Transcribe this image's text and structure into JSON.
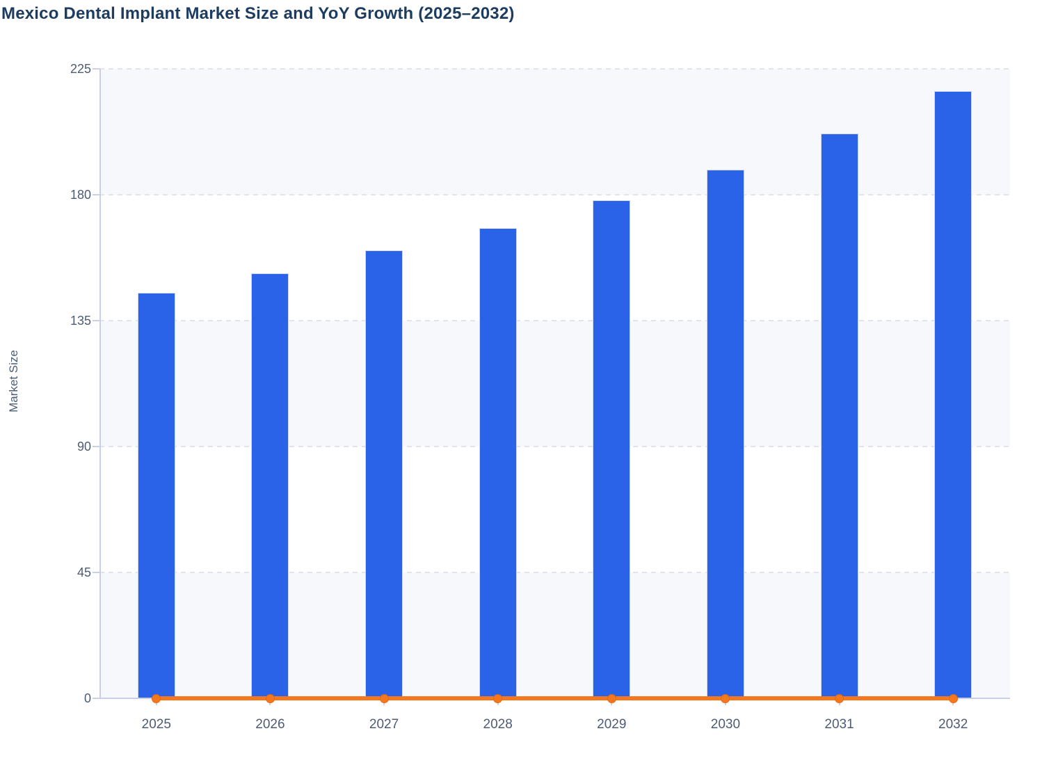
{
  "chart_data": {
    "type": "bar",
    "title": "Mexico Dental Implant Market Size and YoY Growth (2025–2032)",
    "xlabel": "",
    "ylabel": "Market Size",
    "categories": [
      "2025",
      "2026",
      "2027",
      "2028",
      "2029",
      "2030",
      "2031",
      "2032"
    ],
    "series": [
      {
        "name": "Market Size",
        "type": "bar",
        "color": "#2a63e8",
        "values": [
          145,
          152,
          160,
          168,
          178,
          189,
          202,
          217
        ]
      },
      {
        "name": "YoY Growth",
        "type": "line",
        "color": "#f5771e",
        "values": [
          0,
          0,
          0,
          0,
          0,
          0,
          0,
          0
        ],
        "note": "line renders flat at y≈0 on the shared Market Size axis, with a round marker at every year"
      }
    ],
    "ylim": [
      0,
      225
    ],
    "yticks": [
      0,
      45,
      90,
      135,
      180,
      225
    ],
    "grid": "horizontal-dashed",
    "legend": "none",
    "plot_bands": "alternating horizontal bands between gridlines"
  },
  "colors": {
    "bar_fill": "#2a63e8",
    "bar_border": "#ccd6ee",
    "line_orange": "#f5771e",
    "marker_border": "#e8680f",
    "band_fill": "#f6f8fb",
    "band_alt_fill": "#ffffff",
    "grid_dash": "#e1e4eb",
    "axis_line": "#c9cfe8",
    "title_text": "#1d3c60",
    "tick_text": "#4d5c74",
    "background": "#ffffff"
  }
}
